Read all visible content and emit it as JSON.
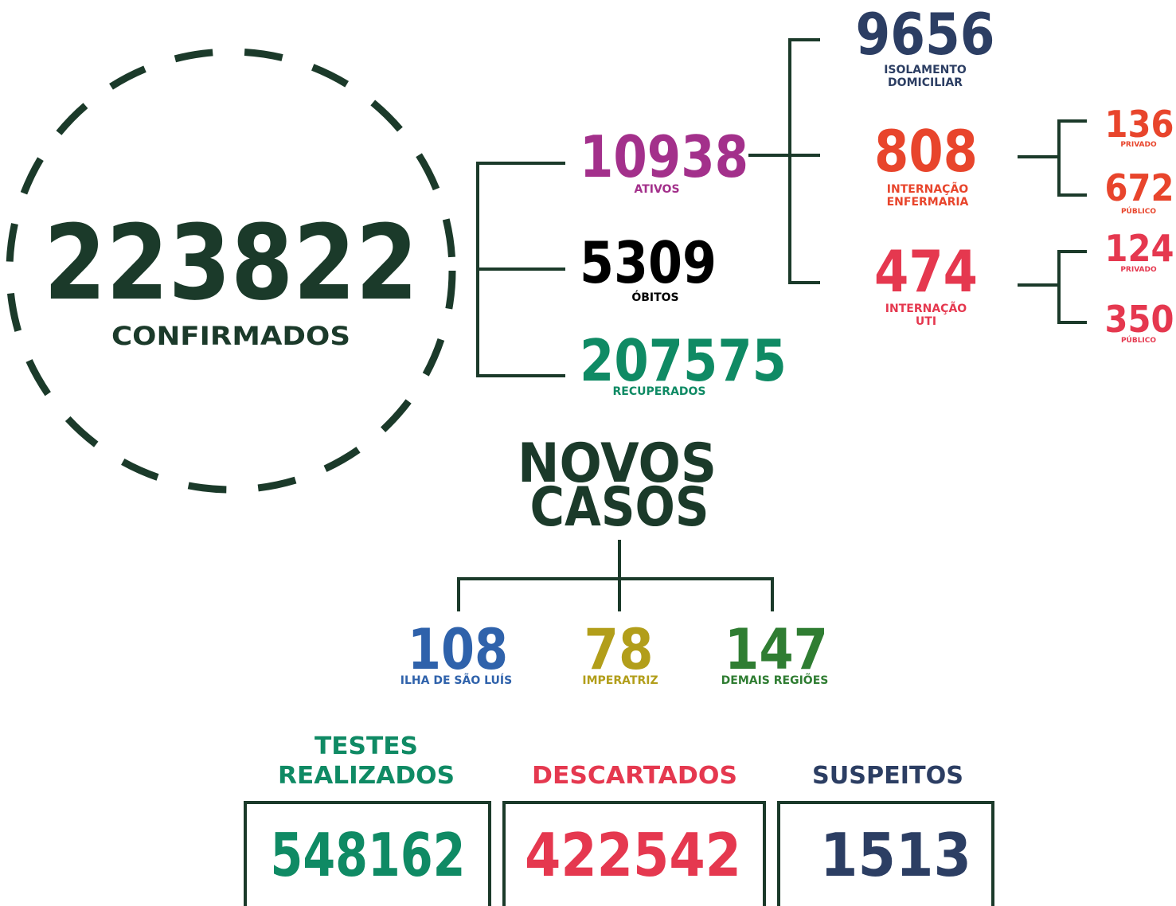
{
  "confirmados": {
    "value": 223822,
    "label": "CONFIRMADOS"
  },
  "ativos": {
    "value": 10938,
    "label": "ATIVOS"
  },
  "obitos": {
    "value": 5309,
    "label": "ÓBITOS"
  },
  "recuperados": {
    "value": 207575,
    "label": "RECUPERADOS"
  },
  "isolamento": {
    "value": 9656,
    "label_lines": [
      "ISOLAMENTO",
      "DOMICILIAR"
    ]
  },
  "enfermaria": {
    "value": 808,
    "label_lines": [
      "INTERNAÇÃO",
      "ENFERMARIA"
    ],
    "privado": {
      "value": 136,
      "label": "PRIVADO"
    },
    "publico": {
      "value": 672,
      "label": "PÚBLICO"
    }
  },
  "uti": {
    "value": 474,
    "label_lines": [
      "INTERNAÇÃO",
      "UTI"
    ],
    "privado": {
      "value": 124,
      "label": "PRIVADO"
    },
    "publico": {
      "value": 350,
      "label": "PÚBLICO"
    }
  },
  "novos_casos": {
    "title_lines": [
      "NOVOS",
      "CASOS"
    ],
    "regions": [
      {
        "value": 108,
        "label": "ILHA DE SÃO LUÍS"
      },
      {
        "value": 78,
        "label": "IMPERATRIZ"
      },
      {
        "value": 147,
        "label": "DEMAIS REGIÕES"
      }
    ]
  },
  "totals": [
    {
      "title_lines": [
        "TESTES",
        "REALIZADOS"
      ],
      "value": 548162
    },
    {
      "title_lines": [
        "DESCARTADOS"
      ],
      "value": 422542
    },
    {
      "title_lines": [
        "SUSPEITOS"
      ],
      "value": 1513
    }
  ]
}
